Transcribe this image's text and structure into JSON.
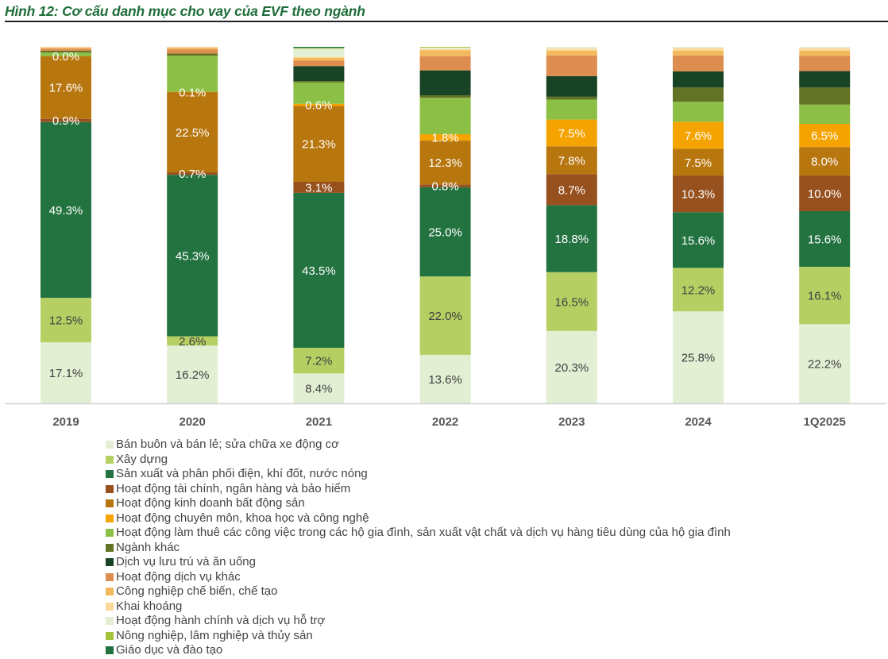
{
  "title": "Hình 12: Cơ cấu danh mục cho vay của EVF theo ngành",
  "chart_data": {
    "type": "bar",
    "stacked": true,
    "percent_stacked": true,
    "title": "Hình 12: Cơ cấu danh mục cho vay của EVF theo ngành",
    "xlabel": "",
    "ylabel": "",
    "ylim": [
      0,
      100
    ],
    "grid": false,
    "legend_position": "bottom",
    "categories": [
      "2019",
      "2020",
      "2021",
      "2022",
      "2023",
      "2024",
      "1Q2025"
    ],
    "series": [
      {
        "name": "Bán buôn và bán lẻ; sửa chữa xe động cơ",
        "color": "#e2efd3",
        "label_color": "#404040",
        "values": [
          17.1,
          16.2,
          8.4,
          13.6,
          20.3,
          25.8,
          22.2
        ],
        "labels": [
          "17.1%",
          "16.2%",
          "8.4%",
          "13.6%",
          "20.3%",
          "25.8%",
          "22.2%"
        ]
      },
      {
        "name": "Xây dựng",
        "color": "#b5cf63",
        "label_color": "#404040",
        "values": [
          12.5,
          2.6,
          7.2,
          22.0,
          16.5,
          12.2,
          16.1
        ],
        "labels": [
          "12.5%",
          "2.6%",
          "7.2%",
          "22.0%",
          "16.5%",
          "12.2%",
          "16.1%"
        ]
      },
      {
        "name": "Sản xuất và phân phối điện, khí đốt, nước nóng",
        "color": "#237340",
        "label_color": "#ffffff",
        "values": [
          49.3,
          45.3,
          43.5,
          25.0,
          18.8,
          15.6,
          15.6
        ],
        "labels": [
          "49.3%",
          "45.3%",
          "43.5%",
          "25.0%",
          "18.8%",
          "15.6%",
          "15.6%"
        ]
      },
      {
        "name": "Hoạt động tài chính, ngân hàng và bảo hiểm",
        "color": "#97511f",
        "label_color": "#ffffff",
        "values": [
          0.9,
          0.7,
          3.1,
          0.8,
          8.7,
          10.3,
          10.0
        ],
        "labels": [
          "0.9%",
          "0.7%",
          "3.1%",
          "0.8%",
          "8.7%",
          "10.3%",
          "10.0%"
        ]
      },
      {
        "name": "Hoạt động kinh doanh bất động sản",
        "color": "#b8760f",
        "label_color": "#ffffff",
        "values": [
          17.6,
          22.5,
          21.3,
          12.3,
          7.8,
          7.5,
          8.0
        ],
        "labels": [
          "17.6%",
          "22.5%",
          "21.3%",
          "12.3%",
          "7.8%",
          "7.5%",
          "8.0%"
        ]
      },
      {
        "name": "Hoạt động chuyên môn, khoa học và công nghệ",
        "color": "#f5a300",
        "label_color": "#ffffff",
        "values": [
          0.0,
          0.1,
          0.6,
          1.8,
          7.5,
          7.6,
          6.5
        ],
        "labels": [
          "0.0%",
          "0.1%",
          "0.6%",
          "1.8%",
          "7.5%",
          "7.6%",
          "6.5%"
        ]
      },
      {
        "name": "Hoạt động làm thuê các công việc trong các hộ gia đình, sản xuất vật chất và dịch vụ hàng tiêu dùng của hộ gia đình",
        "color": "#8bbf46",
        "label_color": "#ffffff",
        "values": [
          1.0,
          10.1,
          6.0,
          10.2,
          5.6,
          5.6,
          5.4
        ],
        "labels": [
          "",
          "",
          "",
          "",
          "",
          "",
          ""
        ]
      },
      {
        "name": "Ngành khác",
        "color": "#637325",
        "label_color": "#ffffff",
        "values": [
          0.5,
          0.6,
          0.4,
          0.7,
          0.8,
          4.0,
          4.8
        ],
        "labels": [
          "",
          "",
          "",
          "",
          "",
          "",
          ""
        ]
      },
      {
        "name": "Dịch vụ lưu trú và ăn uống",
        "color": "#184324",
        "label_color": "#ffffff",
        "values": [
          0.0,
          0.0,
          4.2,
          7.0,
          5.8,
          4.5,
          4.6
        ],
        "labels": [
          "",
          "",
          "",
          "",
          "",
          "",
          ""
        ]
      },
      {
        "name": "Hoạt động dịch vụ khác",
        "color": "#de8d50",
        "label_color": "#ffffff",
        "values": [
          0.6,
          1.2,
          1.5,
          4.0,
          5.8,
          4.5,
          4.3
        ],
        "labels": [
          "",
          "",
          "",
          "",
          "",
          "",
          ""
        ]
      },
      {
        "name": "Công nghiệp chế biến, chế tạo",
        "color": "#f3b95d",
        "label_color": "#404040",
        "values": [
          0.3,
          0.5,
          0.8,
          1.6,
          1.3,
          1.3,
          1.4
        ],
        "labels": [
          "",
          "",
          "",
          "",
          "",
          "",
          ""
        ]
      },
      {
        "name": "Khai khoáng",
        "color": "#fcd99a",
        "label_color": "#404040",
        "values": [
          0.2,
          0.2,
          0.3,
          0.4,
          0.6,
          0.8,
          0.8
        ],
        "labels": [
          "",
          "",
          "",
          "",
          "",
          "",
          ""
        ]
      },
      {
        "name": "Hoạt động hành chính và dịch vụ hỗ trợ",
        "color": "#e2efd3",
        "label_color": "#404040",
        "values": [
          0.0,
          0.0,
          2.3,
          0.4,
          0.5,
          0.3,
          0.3
        ],
        "labels": [
          "",
          "",
          "",
          "",
          "",
          "",
          ""
        ]
      },
      {
        "name": "Nông nghiệp, lâm nghiệp và thủy sản",
        "color": "#a5c23c",
        "label_color": "#404040",
        "values": [
          0.0,
          0.0,
          0.2,
          0.2,
          0.0,
          0.0,
          0.0
        ],
        "labels": [
          "",
          "",
          "",
          "",
          "",
          "",
          ""
        ]
      },
      {
        "name": "Giáo dục và đào tạo",
        "color": "#237340",
        "label_color": "#ffffff",
        "values": [
          0.0,
          0.0,
          0.3,
          0.0,
          0.0,
          0.0,
          0.0
        ],
        "labels": [
          "",
          "",
          "",
          "",
          "",
          "",
          ""
        ]
      }
    ]
  }
}
